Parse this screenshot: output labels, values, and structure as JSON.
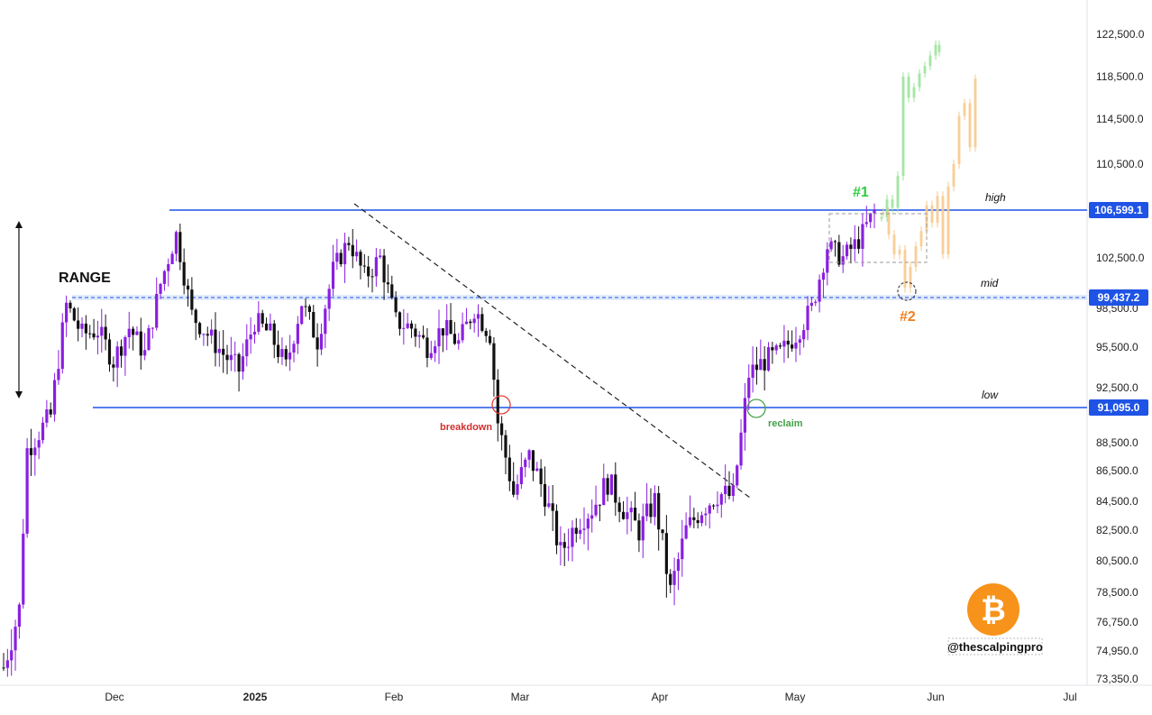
{
  "chart_data": {
    "type": "candlestick",
    "title": "",
    "watermark": "@thescalpingpro",
    "logo": "bitcoin-logo",
    "y_axis": {
      "ticks": [
        73350,
        74950,
        76750,
        78500,
        80500,
        82500,
        84500,
        86500,
        88500,
        91095,
        92500,
        95500,
        98500,
        99437.2,
        102500,
        106599.1,
        110500,
        114500,
        118500,
        122500
      ],
      "tick_labels": [
        "73,350.0",
        "74,950.0",
        "76,750.0",
        "78,500.0",
        "80,500.0",
        "82,500.0",
        "84,500.0",
        "86,500.0",
        "88,500.0",
        "91,095.0",
        "92,500.0",
        "95,500.0",
        "98,500.0",
        "99,437.2",
        "102,500.0",
        "106,599.1",
        "110,500.0",
        "114,500.0",
        "118,500.0",
        "122,500.0"
      ]
    },
    "x_axis": {
      "labels": [
        "Dec",
        "2025",
        "Feb",
        "Mar",
        "Apr",
        "May",
        "Jun",
        "Jul"
      ]
    },
    "levels": [
      {
        "name": "high",
        "value": 106599.1,
        "label": "106,599.1",
        "color": "#1e53e5",
        "style": "solid"
      },
      {
        "name": "mid",
        "value": 99437.2,
        "label": "99,437.2",
        "color": "#1e53e5",
        "style": "dashed"
      },
      {
        "name": "low",
        "value": 91095.0,
        "label": "91,095.0",
        "color": "#1e53e5",
        "style": "solid"
      }
    ],
    "annotations": {
      "range": "RANGE",
      "breakdown": "breakdown",
      "reclaim": "reclaim",
      "scenario1": "#1",
      "scenario2": "#2"
    },
    "candles_approx": [
      {
        "i": 0,
        "o": 74200,
        "h": 75400,
        "l": 73300,
        "c": 75000
      },
      {
        "i": 1,
        "o": 75000,
        "h": 76500,
        "l": 74800,
        "c": 76200
      },
      {
        "i": 2,
        "o": 76200,
        "h": 77600,
        "l": 75500,
        "c": 77300
      },
      {
        "i": 3,
        "o": 77300,
        "h": 78100,
        "l": 76800,
        "c": 77700
      },
      {
        "i": 4,
        "o": 77700,
        "h": 82000,
        "l": 77500,
        "c": 81500
      },
      {
        "i": 5,
        "o": 81500,
        "h": 89500,
        "l": 81200,
        "c": 88000
      },
      {
        "i": 6,
        "o": 88000,
        "h": 89800,
        "l": 85800,
        "c": 87000
      },
      {
        "i": 7,
        "o": 87000,
        "h": 89000,
        "l": 85500,
        "c": 88500
      },
      {
        "i": 8,
        "o": 88500,
        "h": 91800,
        "l": 86500,
        "c": 87200
      },
      {
        "i": 9,
        "o": 87200,
        "h": 90800,
        "l": 86800,
        "c": 90300
      },
      {
        "i": 10,
        "o": 90300,
        "h": 92500,
        "l": 88800,
        "c": 89000
      },
      {
        "i": 11,
        "o": 89000,
        "h": 91000,
        "l": 88000,
        "c": 90500
      },
      {
        "i": 12,
        "o": 90500,
        "h": 92200,
        "l": 89500,
        "c": 90800
      },
      {
        "i": 13,
        "o": 90800,
        "h": 93500,
        "l": 90300,
        "c": 92800
      },
      {
        "i": 14,
        "o": 92800,
        "h": 97800,
        "l": 92300,
        "c": 97200
      },
      {
        "i": 15,
        "o": 97200,
        "h": 99400,
        "l": 96800,
        "c": 98800
      },
      {
        "i": 16,
        "o": 98800,
        "h": 99200,
        "l": 96300,
        "c": 97300
      },
      {
        "i": 17,
        "o": 97300,
        "h": 97900,
        "l": 92300,
        "c": 93000
      },
      {
        "i": 18,
        "o": 93000,
        "h": 94000,
        "l": 91100,
        "c": 91900
      },
      {
        "i": 19,
        "o": 91900,
        "h": 96500,
        "l": 91500,
        "c": 95800
      },
      {
        "i": 20,
        "o": 95800,
        "h": 97600,
        "l": 94800,
        "c": 96800
      },
      {
        "i": 21,
        "o": 96800,
        "h": 97500,
        "l": 94200,
        "c": 95000
      },
      {
        "i": 22,
        "o": 95000,
        "h": 97000,
        "l": 93600,
        "c": 96500
      },
      {
        "i": 23,
        "o": 96500,
        "h": 97200,
        "l": 95000,
        "c": 95500
      },
      {
        "i": 24,
        "o": 95500,
        "h": 99000,
        "l": 94500,
        "c": 97700
      },
      {
        "i": 25,
        "o": 97700,
        "h": 98800,
        "l": 94000,
        "c": 95200
      },
      {
        "i": 26,
        "o": 95200,
        "h": 98200,
        "l": 94600,
        "c": 97000
      },
      {
        "i": 27,
        "o": 97000,
        "h": 103500,
        "l": 91000,
        "c": 98300
      }
    ],
    "candle_count_total": 196
  }
}
